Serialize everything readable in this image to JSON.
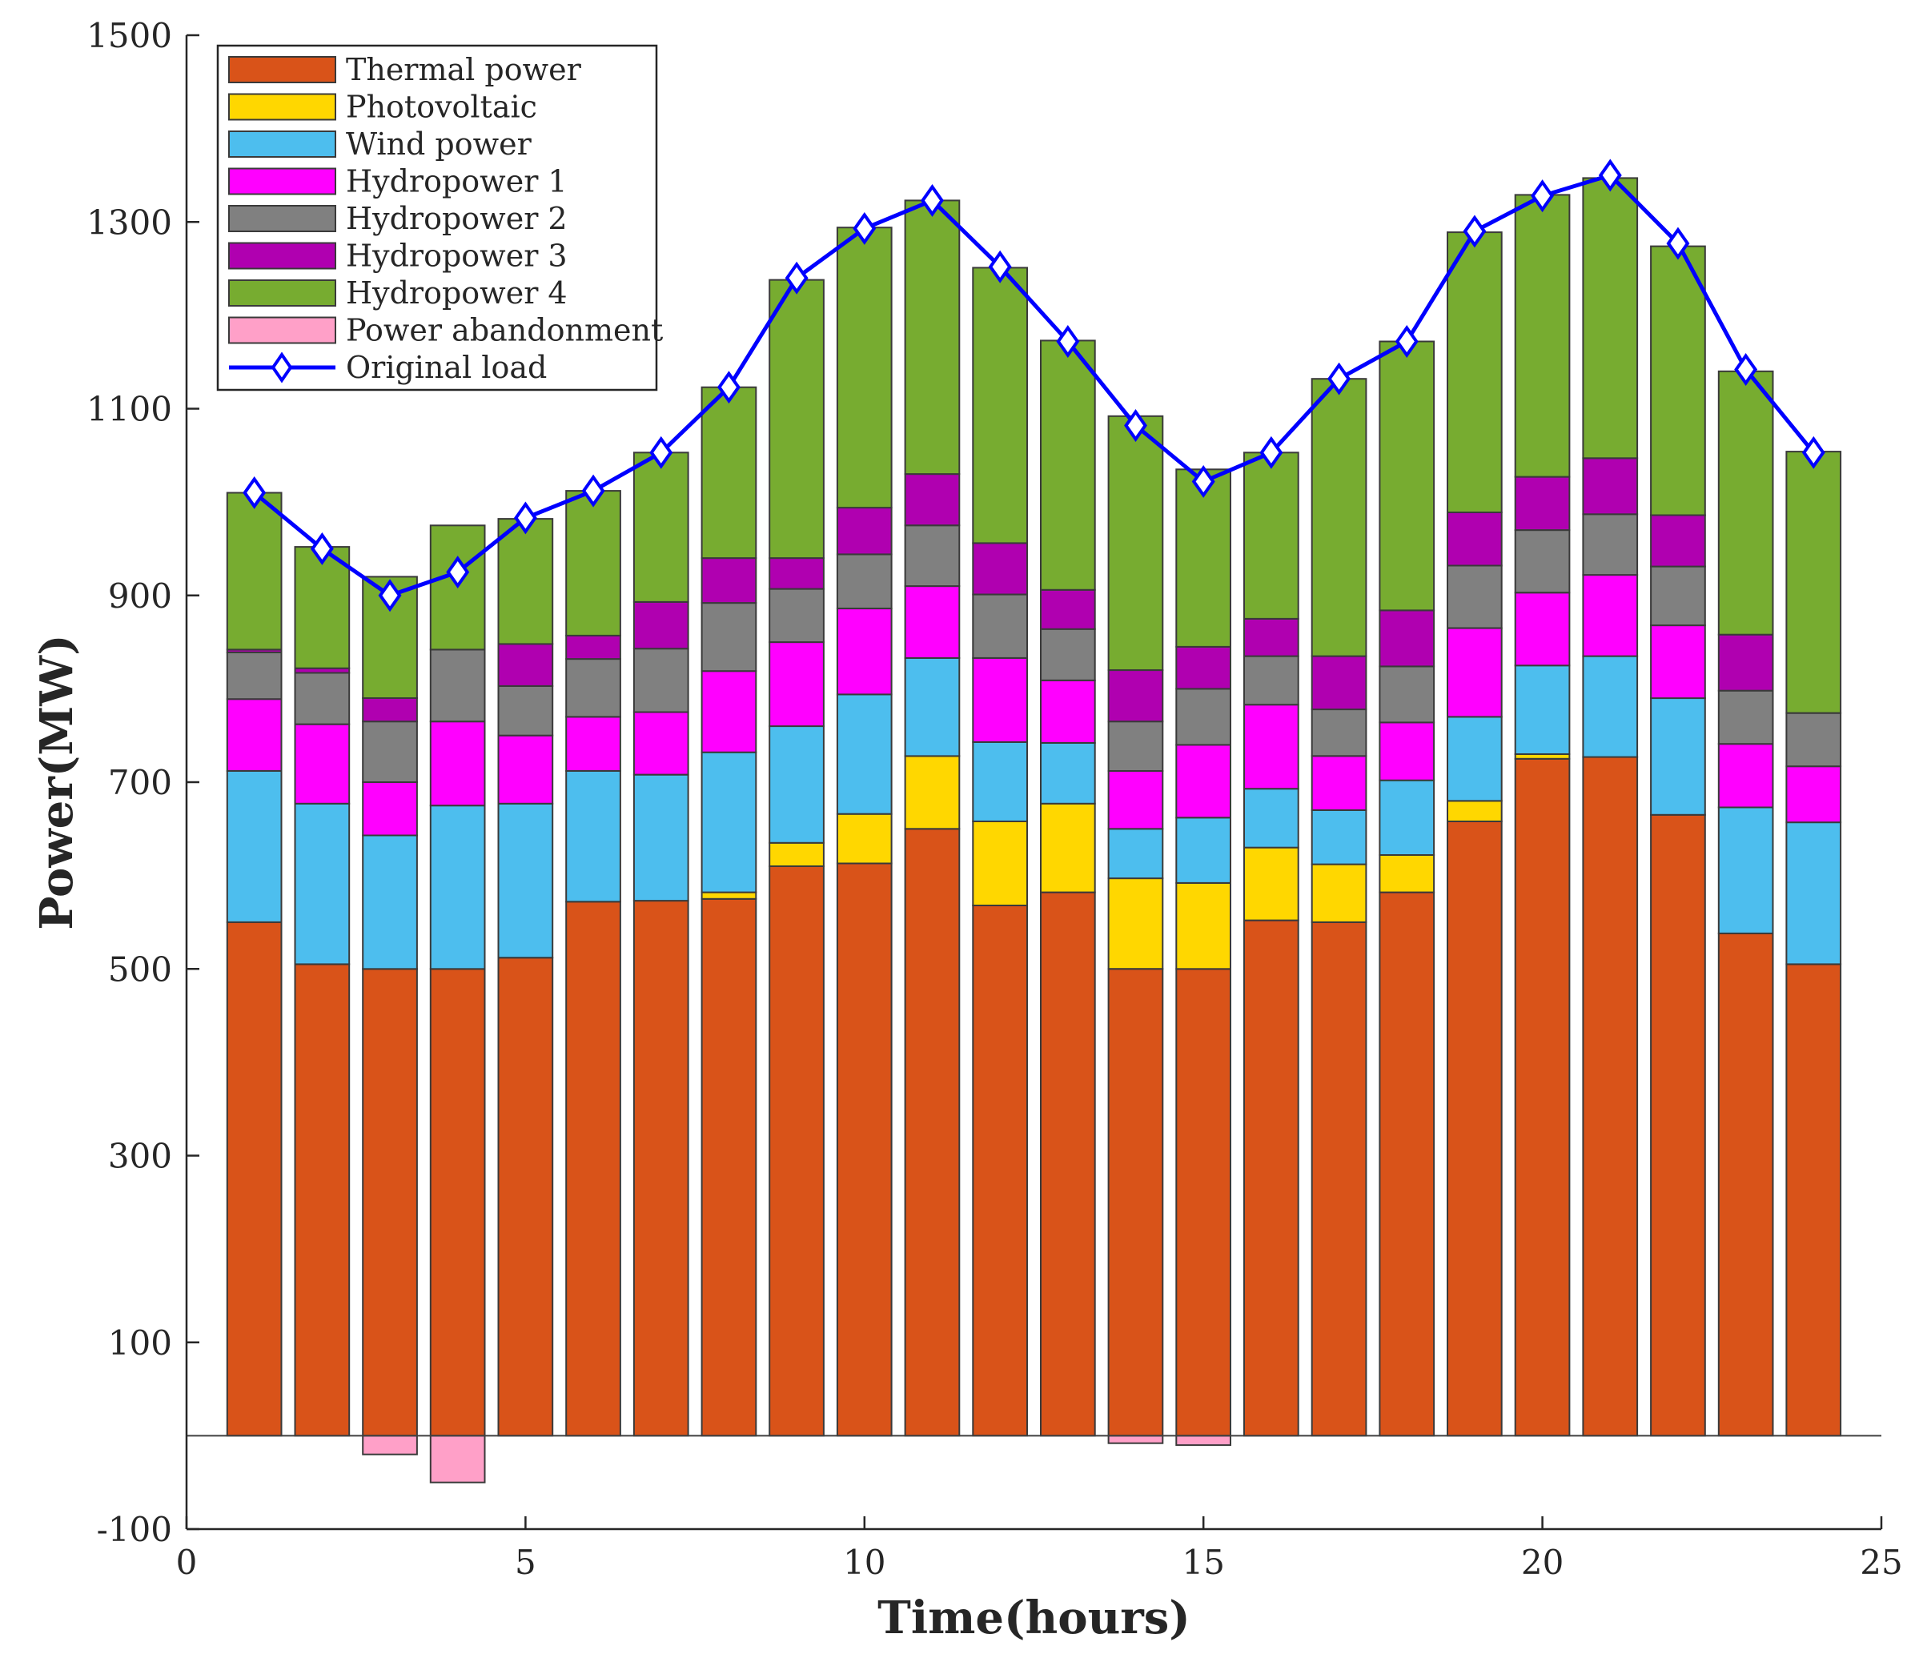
{
  "chart_data": {
    "type": "bar",
    "stacked": true,
    "title": "",
    "xlabel": "Time(hours)",
    "ylabel": "Power(MW)",
    "xlim": [
      0,
      25
    ],
    "ylim": [
      -100,
      1500
    ],
    "xticks": [
      0,
      5,
      10,
      15,
      20,
      25
    ],
    "yticks": [
      -100,
      100,
      300,
      500,
      700,
      900,
      1100,
      1300,
      1500
    ],
    "grid": false,
    "legend_position": "top-left",
    "x": [
      1,
      2,
      3,
      4,
      5,
      6,
      7,
      8,
      9,
      10,
      11,
      12,
      13,
      14,
      15,
      16,
      17,
      18,
      19,
      20,
      21,
      22,
      23,
      24
    ],
    "series": [
      {
        "name": "Thermal power",
        "color": "#D95319",
        "values": [
          550,
          505,
          500,
          500,
          512,
          572,
          573,
          575,
          610,
          613,
          650,
          568,
          582,
          500,
          500,
          552,
          550,
          582,
          658,
          725,
          727,
          665,
          538,
          505
        ]
      },
      {
        "name": "Photovoltaic",
        "color": "#FFD700",
        "values": [
          0,
          0,
          0,
          0,
          0,
          0,
          0,
          7,
          25,
          53,
          78,
          90,
          95,
          97,
          92,
          78,
          62,
          40,
          22,
          5,
          0,
          0,
          0,
          0
        ]
      },
      {
        "name": "Wind power",
        "color": "#4DBEEE",
        "values": [
          162,
          172,
          143,
          175,
          165,
          140,
          135,
          150,
          125,
          128,
          105,
          85,
          65,
          53,
          70,
          63,
          58,
          80,
          90,
          95,
          108,
          125,
          135,
          152
        ]
      },
      {
        "name": "Hydropower 1",
        "color": "#FF00FF",
        "values": [
          77,
          85,
          57,
          90,
          73,
          58,
          67,
          87,
          90,
          92,
          77,
          90,
          67,
          62,
          78,
          90,
          58,
          62,
          95,
          78,
          87,
          78,
          68,
          60
        ]
      },
      {
        "name": "Hydropower 2",
        "color": "#808080",
        "values": [
          50,
          55,
          65,
          77,
          53,
          62,
          68,
          73,
          57,
          58,
          65,
          68,
          55,
          53,
          60,
          52,
          50,
          60,
          67,
          67,
          65,
          63,
          57,
          57
        ]
      },
      {
        "name": "Hydropower 3",
        "color": "#B000B0",
        "values": [
          3,
          5,
          25,
          0,
          45,
          25,
          50,
          48,
          33,
          50,
          55,
          55,
          42,
          55,
          45,
          40,
          57,
          60,
          57,
          57,
          60,
          55,
          60,
          0
        ]
      },
      {
        "name": "Hydropower 4",
        "color": "#77AC30",
        "values": [
          168,
          130,
          130,
          133,
          134,
          155,
          160,
          183,
          298,
          300,
          293,
          295,
          267,
          272,
          190,
          178,
          297,
          288,
          300,
          302,
          300,
          288,
          282,
          280
        ]
      },
      {
        "name": "Power abandonment",
        "color": "#FFA0C8",
        "values": [
          0,
          0,
          -20,
          -50,
          0,
          0,
          0,
          0,
          0,
          0,
          0,
          0,
          0,
          -8,
          -10,
          0,
          0,
          0,
          0,
          0,
          0,
          0,
          0,
          0
        ]
      }
    ],
    "line": {
      "name": "Original load",
      "color": "#0000FF",
      "values": [
        1010,
        950,
        900,
        925,
        983,
        1012,
        1053,
        1123,
        1240,
        1293,
        1323,
        1252,
        1172,
        1082,
        1022,
        1053,
        1132,
        1172,
        1290,
        1328,
        1350,
        1277,
        1142,
        1053
      ]
    },
    "text": {
      "xlabel": "Time(hours)",
      "ylabel": "Power(MW)"
    }
  }
}
